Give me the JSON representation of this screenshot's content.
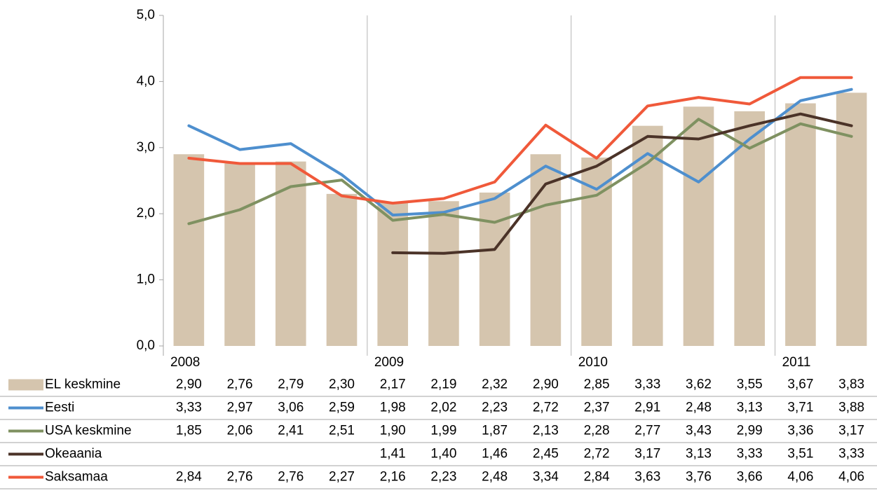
{
  "chart_data": {
    "type": "combo",
    "categories": [
      "2008",
      null,
      null,
      null,
      "2009",
      null,
      null,
      null,
      "2010",
      null,
      null,
      null,
      "2011",
      null
    ],
    "ylim": [
      0,
      5
    ],
    "yticks": [
      {
        "value": 0,
        "label": "0,0"
      },
      {
        "value": 1,
        "label": "1,0"
      },
      {
        "value": 2,
        "label": "2,0"
      },
      {
        "value": 3,
        "label": "3,0"
      },
      {
        "value": 4,
        "label": "4,0"
      },
      {
        "value": 5,
        "label": "5,0"
      }
    ],
    "series": [
      {
        "name": "EL keskmine",
        "type": "bar",
        "color": "#d5c5ae",
        "values": [
          2.9,
          2.76,
          2.79,
          2.3,
          2.17,
          2.19,
          2.32,
          2.9,
          2.85,
          3.33,
          3.62,
          3.55,
          3.67,
          3.83
        ],
        "value_labels": [
          "2,90",
          "2,76",
          "2,79",
          "2,30",
          "2,17",
          "2,19",
          "2,32",
          "2,90",
          "2,85",
          "3,33",
          "3,62",
          "3,55",
          "3,67",
          "3,83"
        ]
      },
      {
        "name": "Eesti",
        "type": "line",
        "color": "#4e8fce",
        "values": [
          3.33,
          2.97,
          3.06,
          2.59,
          1.98,
          2.02,
          2.23,
          2.72,
          2.37,
          2.91,
          2.48,
          3.13,
          3.71,
          3.88
        ],
        "value_labels": [
          "3,33",
          "2,97",
          "3,06",
          "2,59",
          "1,98",
          "2,02",
          "2,23",
          "2,72",
          "2,37",
          "2,91",
          "2,48",
          "3,13",
          "3,71",
          "3,88"
        ]
      },
      {
        "name": "USA keskmine",
        "type": "line",
        "color": "#7f9161",
        "values": [
          1.85,
          2.06,
          2.41,
          2.51,
          1.9,
          1.99,
          1.87,
          2.13,
          2.28,
          2.77,
          3.43,
          2.99,
          3.36,
          3.17
        ],
        "value_labels": [
          "1,85",
          "2,06",
          "2,41",
          "2,51",
          "1,90",
          "1,99",
          "1,87",
          "2,13",
          "2,28",
          "2,77",
          "3,43",
          "2,99",
          "3,36",
          "3,17"
        ]
      },
      {
        "name": "Okeaania",
        "type": "line",
        "color": "#4b3328",
        "values": [
          null,
          null,
          null,
          null,
          1.41,
          1.4,
          1.46,
          2.45,
          2.72,
          3.17,
          3.13,
          3.33,
          3.51,
          3.33
        ],
        "value_labels": [
          null,
          null,
          null,
          null,
          "1,41",
          "1,40",
          "1,46",
          "2,45",
          "2,72",
          "3,17",
          "3,13",
          "3,33",
          "3,51",
          "3,33"
        ]
      },
      {
        "name": "Saksamaa",
        "type": "line",
        "color": "#f0593a",
        "values": [
          2.84,
          2.76,
          2.76,
          2.27,
          2.16,
          2.23,
          2.48,
          3.34,
          2.84,
          3.63,
          3.76,
          3.66,
          4.06,
          4.06
        ],
        "value_labels": [
          "2,84",
          "2,76",
          "2,76",
          "2,27",
          "2,16",
          "2,23",
          "2,48",
          "3,34",
          "2,84",
          "3,63",
          "3,76",
          "3,66",
          "4,06",
          "4,06"
        ]
      }
    ]
  }
}
